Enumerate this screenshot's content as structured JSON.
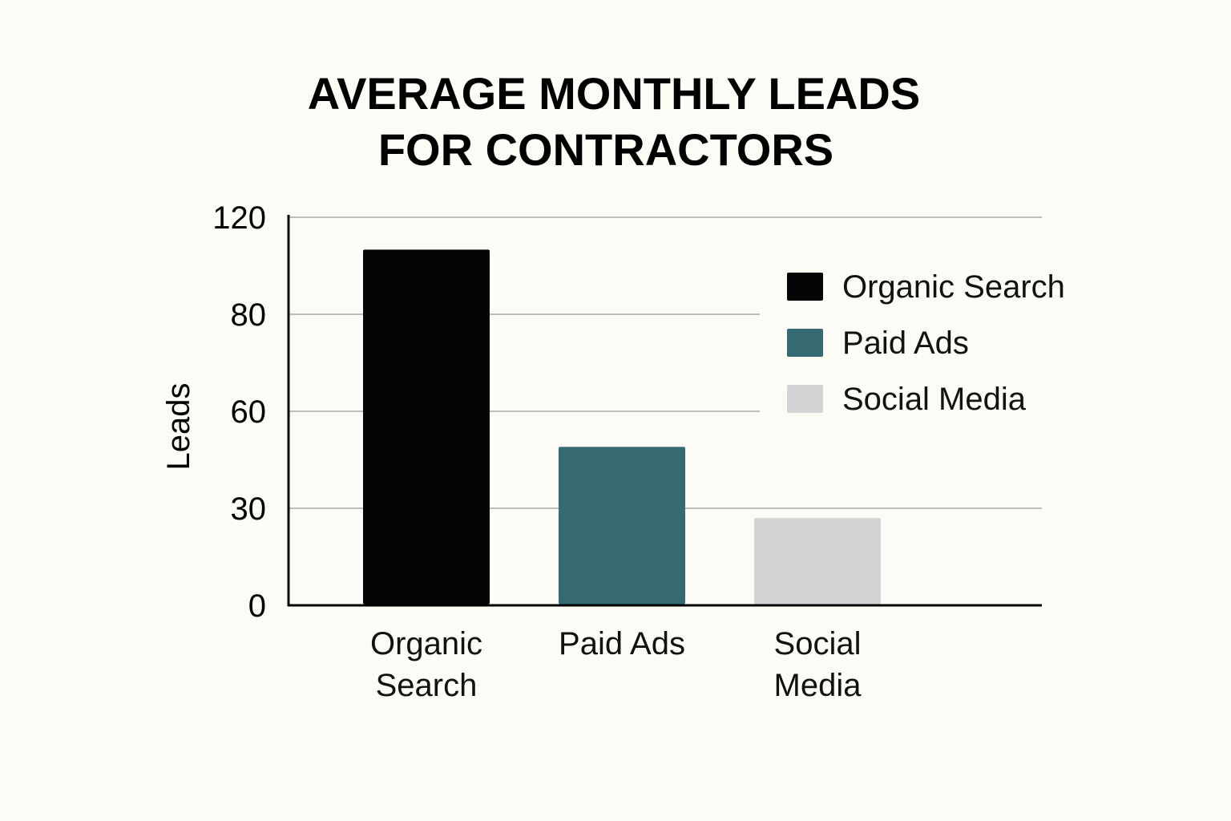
{
  "chart_data": {
    "type": "bar",
    "title_lines": [
      "AVERAGE MONTHLY LEADS",
      "FOR CONTRACTORS"
    ],
    "xlabel": "",
    "ylabel": "Leads",
    "ylim": [
      0,
      120
    ],
    "yticks": [
      {
        "value": 0,
        "label": "0"
      },
      {
        "value": 30,
        "label": "30"
      },
      {
        "value": 60,
        "label": "60"
      },
      {
        "value": 80,
        "label": "80"
      },
      {
        "value": 120,
        "label": "120"
      }
    ],
    "categories": [
      {
        "name": "Organic Search",
        "label_lines": [
          "Organic",
          "Search"
        ],
        "value": 110,
        "color": "#030604"
      },
      {
        "name": "Paid Ads",
        "label_lines": [
          "Paid Ads"
        ],
        "value": 49,
        "color": "#356a73"
      },
      {
        "name": "Social Media",
        "label_lines": [
          "Social",
          "Media"
        ],
        "value": 27,
        "color": "#d4d4d4"
      }
    ],
    "legend": {
      "position": "top-right",
      "entries": [
        {
          "label": "Organic Search",
          "color": "#030604"
        },
        {
          "label": "Paid Ads",
          "color": "#356a73"
        },
        {
          "label": "Social Media",
          "color": "#d4d4d4"
        }
      ]
    },
    "grid": true,
    "colors": {
      "background": "#fcfbf6",
      "gridline": "#bdbdbd",
      "axis": "#000000"
    }
  }
}
